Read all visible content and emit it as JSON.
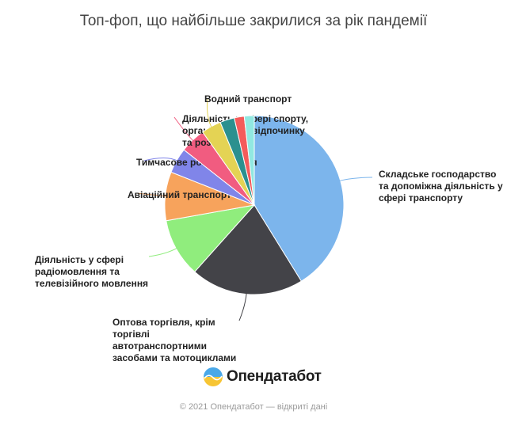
{
  "title": "Топ-фоп, що найбільше закрилися за рік пандемії",
  "chart_data": {
    "type": "pie",
    "title": "Топ-фоп, що найбільше закрилися за рік пандемії",
    "slices": [
      {
        "label": "Складське господарство та допоміжна діяльність у сфері транспорту",
        "lines": [
          "Складське господарство",
          "та допоміжна діяльність у",
          "сфері транспорту"
        ],
        "value": 41.2,
        "color": "#7cb5ec"
      },
      {
        "label": "Оптова торгівля, крім торгівлі автотранспортними засобами та мотоциклами",
        "lines": [
          "Оптова торгівля, крім",
          "торгівлі",
          "автотранспортними",
          "засобами та мотоциклами"
        ],
        "value": 20.4,
        "color": "#434348"
      },
      {
        "label": "Діяльність у сфері радіомовлення та телевізійного мовлення",
        "lines": [
          "Діяльність у сфері",
          "радіомовлення та",
          "телевізійного мовлення"
        ],
        "value": 10.6,
        "color": "#90ed7d"
      },
      {
        "label": "Авіаційний транспорт",
        "lines": [
          "Авіаційний транспорт"
        ],
        "value": 8.8,
        "color": "#f7a35c"
      },
      {
        "label": "Тимчасове розміщування",
        "lines": [
          "Тимчасове розміщування"
        ],
        "value": 4.6,
        "color": "#8085e9"
      },
      {
        "label": "Діяльність у сфері спорту, організування відпочинку та розваг",
        "lines": [
          "Діяльність у сфері спорту,",
          "організування відпочинку",
          "та розваг"
        ],
        "value": 4.6,
        "color": "#f15c80"
      },
      {
        "label": "Водний транспорт",
        "lines": [
          "Водний транспорт"
        ],
        "value": 3.6,
        "color": "#e4d354"
      },
      {
        "label": "",
        "lines": [],
        "value": 2.6,
        "color": "#2b908f"
      },
      {
        "label": "",
        "lines": [],
        "value": 1.8,
        "color": "#f45b5b"
      },
      {
        "label": "",
        "lines": [],
        "value": 1.8,
        "color": "#91e8e1"
      }
    ]
  },
  "logo": {
    "text": "Опендатабот"
  },
  "footer": "© 2021 Опендатабот — відкриті дані"
}
